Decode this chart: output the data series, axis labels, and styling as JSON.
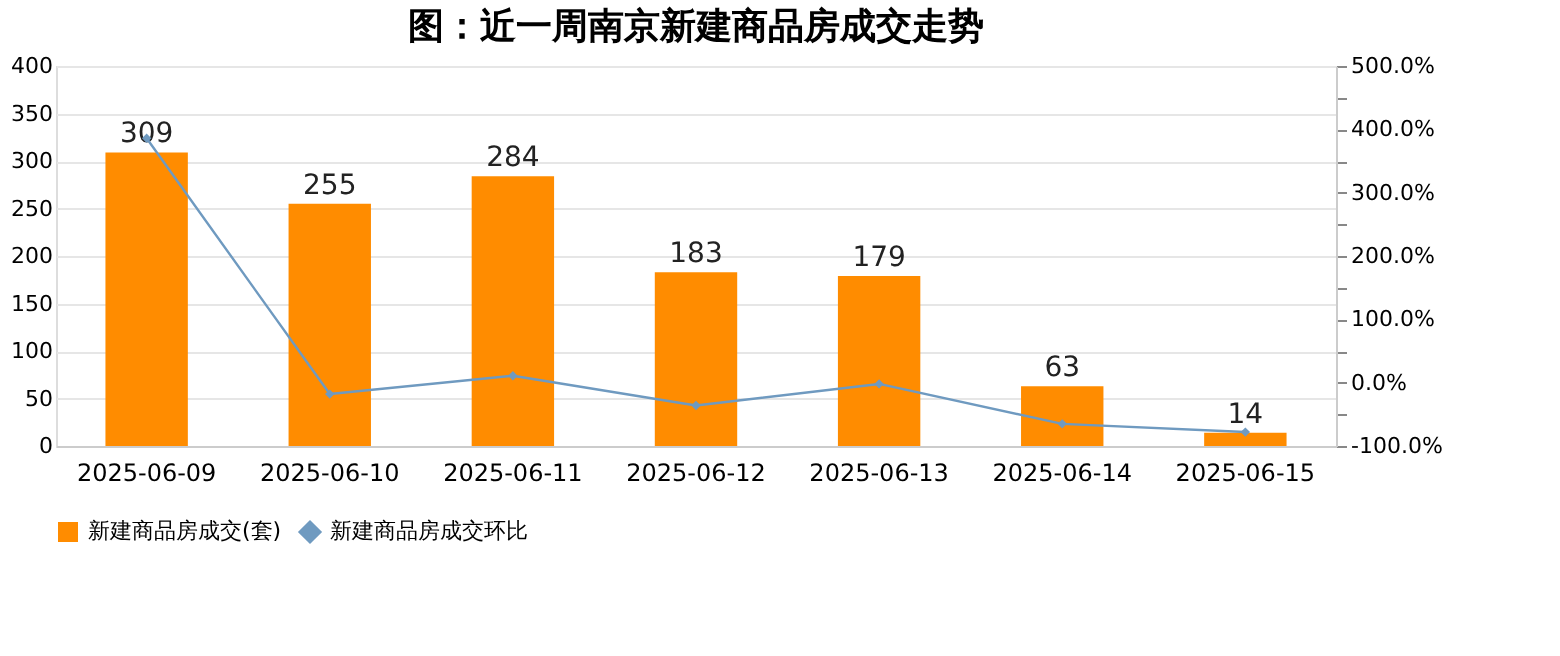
{
  "chart_data": {
    "type": "bar",
    "title": "图：近一周南京新建商品房成交走势",
    "categories": [
      "2025-06-09",
      "2025-06-10",
      "2025-06-11",
      "2025-06-12",
      "2025-06-13",
      "2025-06-14",
      "2025-06-15"
    ],
    "series": [
      {
        "name": "新建商品房成交(套)",
        "color": "#ff8c00",
        "values": [
          309,
          255,
          284,
          183,
          179,
          63,
          14
        ],
        "value_labels": [
          "309",
          "255",
          "284",
          "183",
          "179",
          "63",
          "14"
        ]
      },
      {
        "name": "新建商品房成交环比",
        "type": "line",
        "axis": "y2",
        "color": "#6f9ac0",
        "marker": "diamond",
        "line_style": "solid",
        "values": [
          386,
          -18,
          11,
          -36,
          -2,
          -65,
          -78
        ]
      }
    ],
    "ylim": [
      0,
      400
    ],
    "yticks": [
      0,
      50,
      100,
      150,
      200,
      250,
      300,
      350,
      400
    ],
    "y2lim": [
      -100,
      500
    ],
    "y2ticks": [
      {
        "value": -100,
        "label": "-100.0%"
      },
      {
        "value": -50,
        "label": null
      },
      {
        "value": 0,
        "label": "0.0%"
      },
      {
        "value": 50,
        "label": null
      },
      {
        "value": 100,
        "label": "100.0%"
      },
      {
        "value": 150,
        "label": null
      },
      {
        "value": 200,
        "label": "200.0%"
      },
      {
        "value": 250,
        "label": null
      },
      {
        "value": 300,
        "label": "300.0%"
      },
      {
        "value": 350,
        "label": null
      },
      {
        "value": 400,
        "label": "400.0%"
      },
      {
        "value": 450,
        "label": null
      },
      {
        "value": 500,
        "label": "500.0%"
      }
    ],
    "grid": "y",
    "legend": "bottom"
  }
}
